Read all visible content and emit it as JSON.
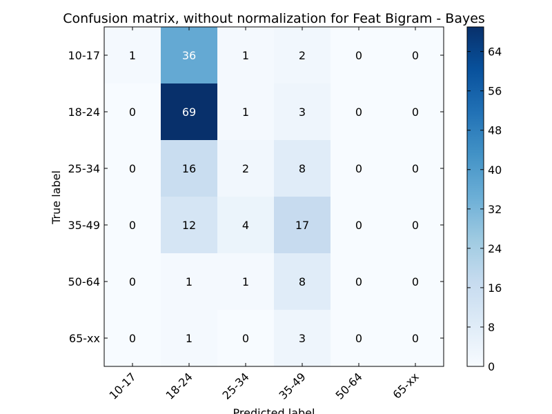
{
  "chart_data": {
    "type": "heatmap",
    "title": "Confusion matrix, without normalization for Feat Bigram - Bayes",
    "xlabel": "Predicted label",
    "ylabel": "True label",
    "x_categories": [
      "10-17",
      "18-24",
      "25-34",
      "35-49",
      "50-64",
      "65-xx"
    ],
    "y_categories": [
      "10-17",
      "18-24",
      "25-34",
      "35-49",
      "50-64",
      "65-xx"
    ],
    "values": [
      [
        1,
        36,
        1,
        2,
        0,
        0
      ],
      [
        0,
        69,
        1,
        3,
        0,
        0
      ],
      [
        0,
        16,
        2,
        8,
        0,
        0
      ],
      [
        0,
        12,
        4,
        17,
        0,
        0
      ],
      [
        0,
        1,
        1,
        8,
        0,
        0
      ],
      [
        0,
        1,
        0,
        3,
        0,
        0
      ]
    ],
    "colormap": "Blues",
    "color_range": [
      0,
      69
    ],
    "colorbar_ticks": [
      0,
      8,
      16,
      24,
      32,
      40,
      48,
      56,
      64
    ]
  }
}
